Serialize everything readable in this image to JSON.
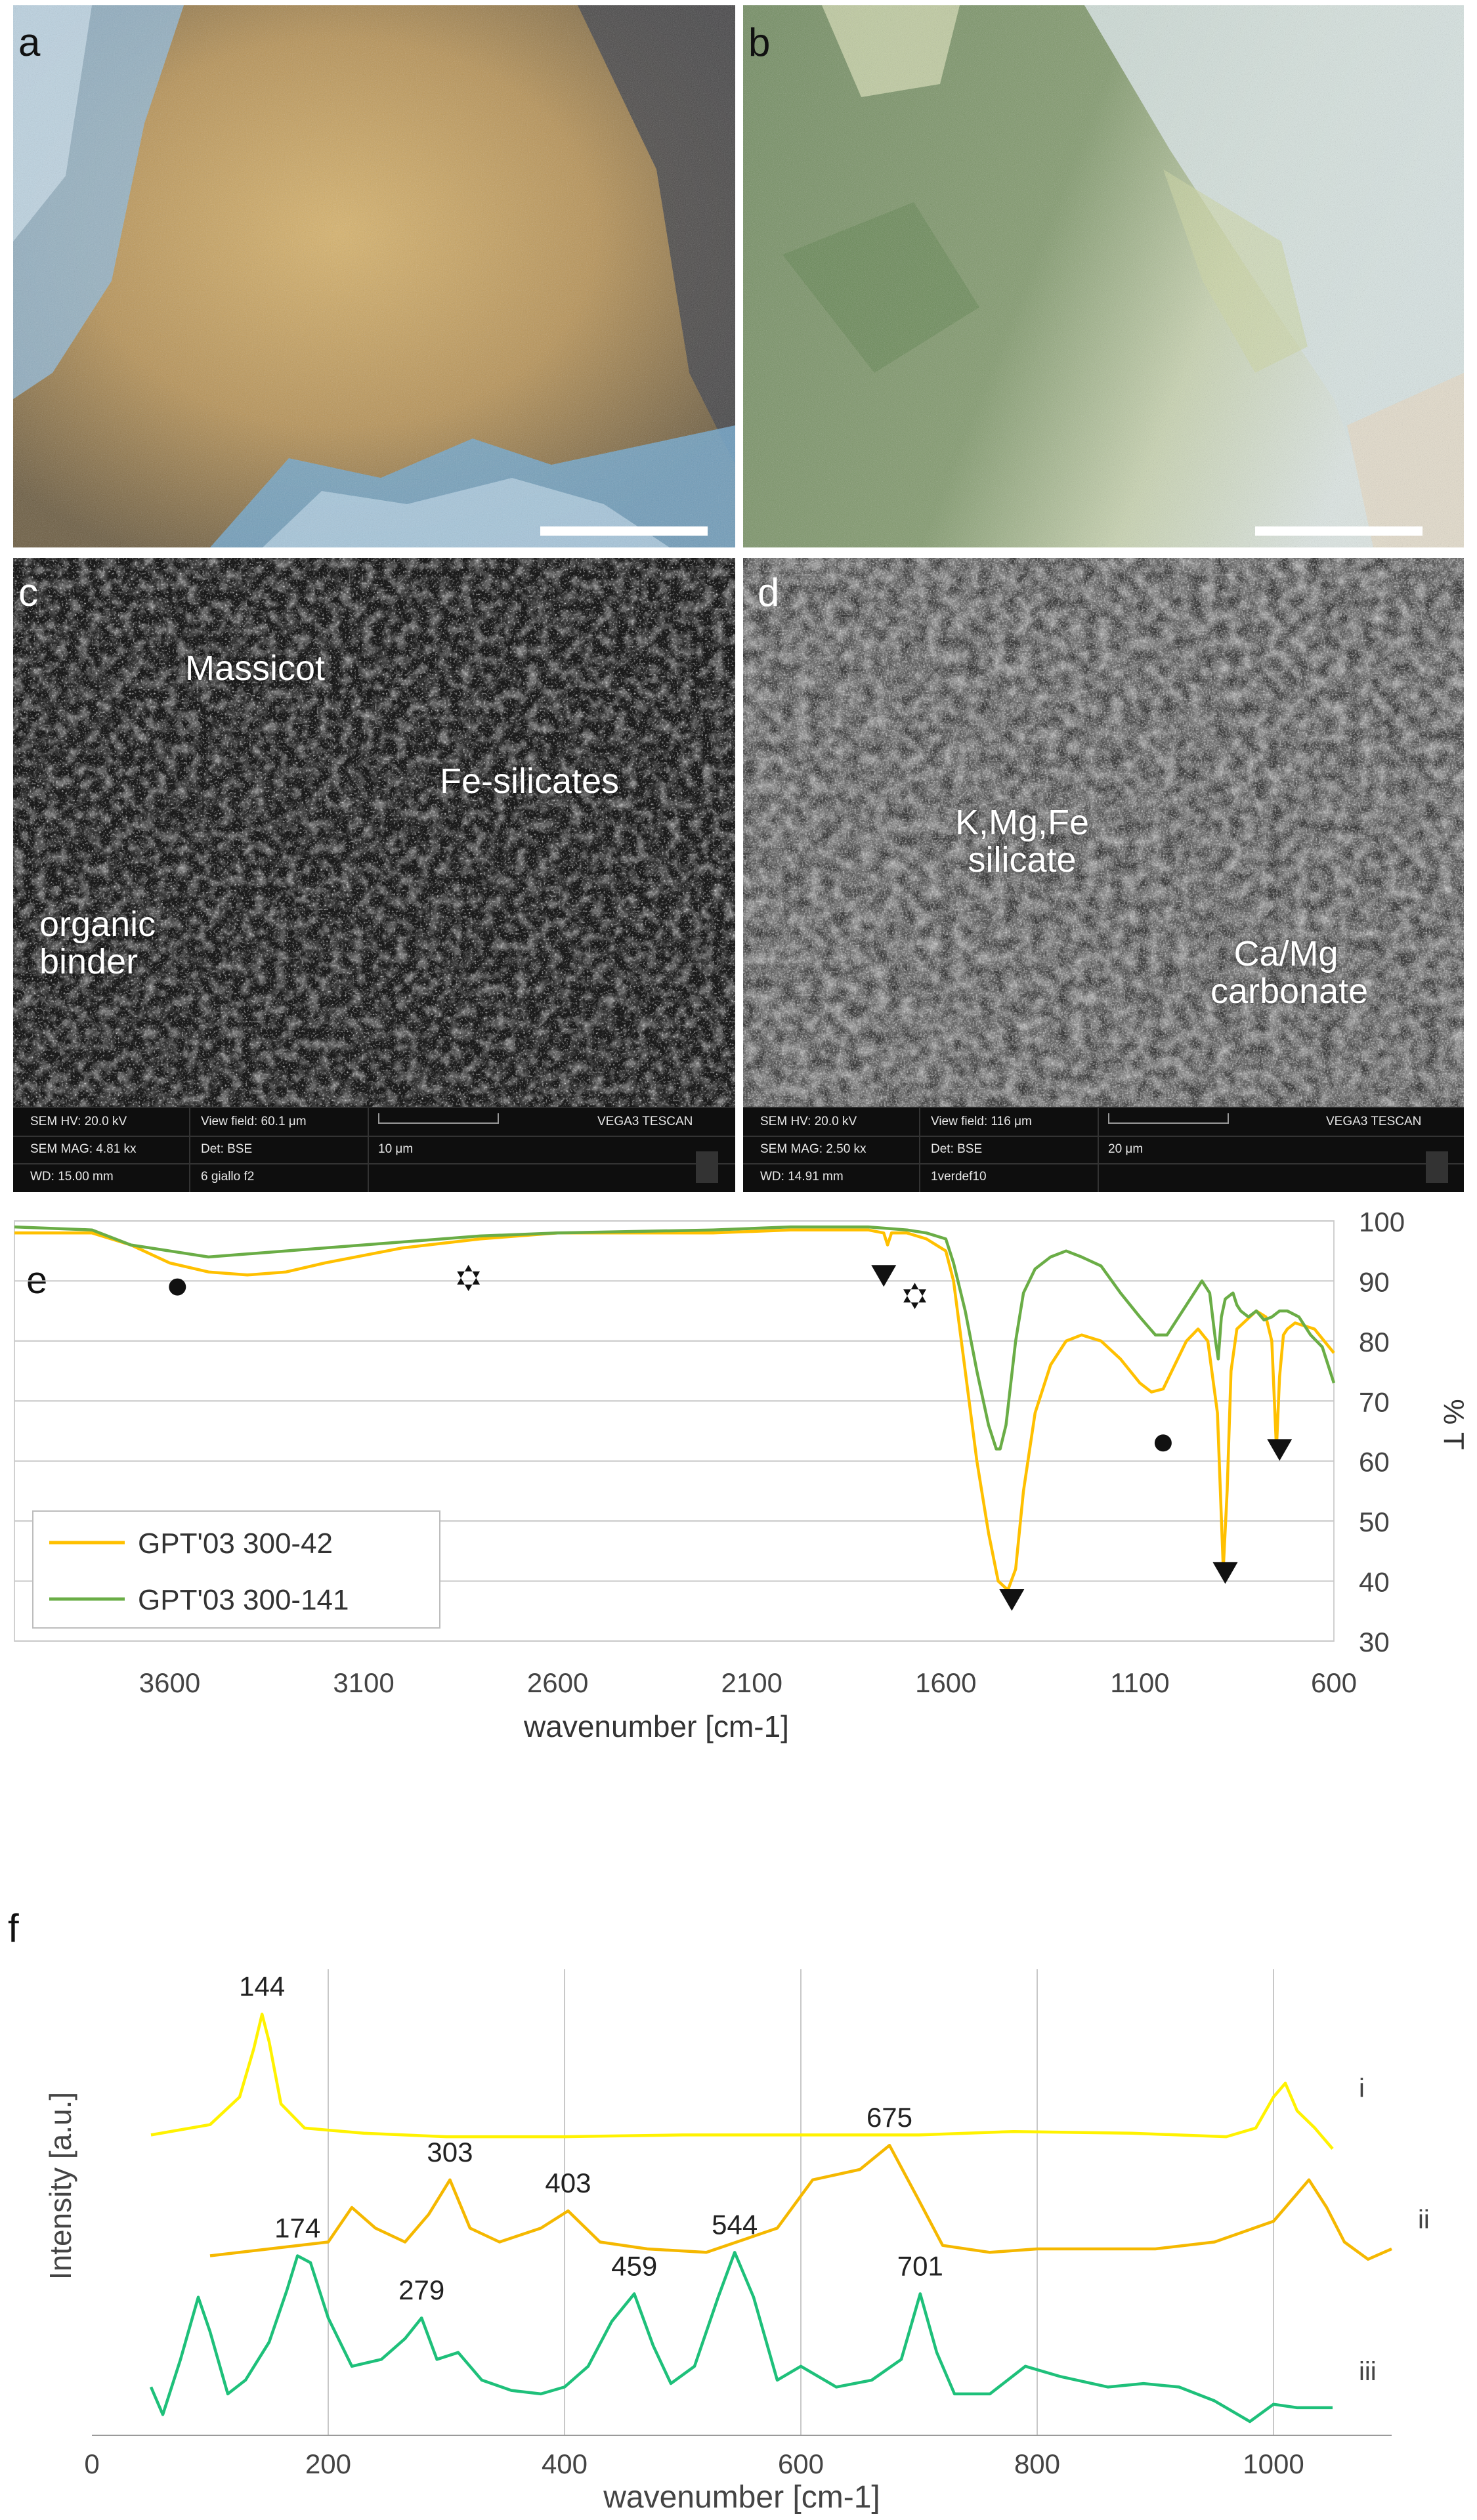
{
  "panels": {
    "a": {
      "label": "a"
    },
    "b": {
      "label": "b"
    },
    "c": {
      "label": "c",
      "annotations": [
        "Massicot",
        "Fe-silicates",
        "organic binder"
      ],
      "footer": {
        "hv": "SEM HV: 20.0 kV",
        "view_field": "View field: 60.1 μm",
        "mag": "SEM MAG: 4.81 kx",
        "det": "Det: BSE",
        "wd": "WD: 15.00 mm",
        "sample": "6 giallo f2",
        "scale": "10 μm",
        "brand": "VEGA3 TESCAN"
      }
    },
    "d": {
      "label": "d",
      "annotations": [
        "K,Mg,Fe silicate",
        "Ca/Mg carbonate"
      ],
      "footer": {
        "hv": "SEM HV: 20.0 kV",
        "view_field": "View field: 116 μm",
        "mag": "SEM MAG: 2.50 kx",
        "det": "Det: BSE",
        "wd": "WD: 14.91 mm",
        "sample": "1verdef10",
        "scale": "20 μm",
        "brand": "VEGA3 TESCAN"
      }
    }
  },
  "chart_data": [
    {
      "panel": "e",
      "type": "line",
      "title": "",
      "xlabel": "wavenumber [cm-1]",
      "ylabel": "% T",
      "xlim": [
        4000,
        600
      ],
      "ylim": [
        30,
        100
      ],
      "x_reversed": true,
      "x_ticks": [
        3600,
        3100,
        2600,
        2100,
        1600,
        1100,
        600
      ],
      "y_ticks": [
        30,
        40,
        50,
        60,
        70,
        80,
        90,
        100
      ],
      "y_axis_side": "right",
      "grid": "horizontal",
      "legend_position": "bottom-left",
      "series": [
        {
          "name": "GPT'03 300-42",
          "color": "#FFC000",
          "points": [
            [
              4000,
              98
            ],
            [
              3800,
              98
            ],
            [
              3700,
              96
            ],
            [
              3600,
              93
            ],
            [
              3500,
              91.5
            ],
            [
              3400,
              91
            ],
            [
              3300,
              91.5
            ],
            [
              3200,
              93
            ],
            [
              3000,
              95.5
            ],
            [
              2800,
              97
            ],
            [
              2600,
              98
            ],
            [
              2400,
              98
            ],
            [
              2200,
              98
            ],
            [
              2000,
              98.5
            ],
            [
              1800,
              98.5
            ],
            [
              1760,
              98
            ],
            [
              1750,
              96
            ],
            [
              1740,
              98
            ],
            [
              1700,
              98
            ],
            [
              1650,
              97
            ],
            [
              1600,
              95
            ],
            [
              1580,
              90
            ],
            [
              1550,
              75
            ],
            [
              1520,
              60
            ],
            [
              1490,
              48
            ],
            [
              1465,
              40
            ],
            [
              1440,
              38.5
            ],
            [
              1420,
              42
            ],
            [
              1400,
              55
            ],
            [
              1370,
              68
            ],
            [
              1330,
              76
            ],
            [
              1290,
              80
            ],
            [
              1250,
              81
            ],
            [
              1200,
              80
            ],
            [
              1150,
              77
            ],
            [
              1100,
              73
            ],
            [
              1070,
              71.5
            ],
            [
              1040,
              72
            ],
            [
              1010,
              76
            ],
            [
              980,
              80
            ],
            [
              950,
              82
            ],
            [
              925,
              80
            ],
            [
              900,
              68
            ],
            [
              885,
              42
            ],
            [
              875,
              55
            ],
            [
              865,
              75
            ],
            [
              850,
              82
            ],
            [
              800,
              85
            ],
            [
              775,
              84
            ],
            [
              760,
              80
            ],
            [
              748,
              62
            ],
            [
              740,
              74
            ],
            [
              730,
              81
            ],
            [
              720,
              82
            ],
            [
              700,
              83
            ],
            [
              650,
              82
            ],
            [
              600,
              78
            ]
          ]
        },
        {
          "name": "GPT'03 300-141",
          "color": "#6AAD46",
          "points": [
            [
              4000,
              99
            ],
            [
              3800,
              98.5
            ],
            [
              3700,
              96
            ],
            [
              3600,
              95
            ],
            [
              3500,
              94
            ],
            [
              3400,
              94.5
            ],
            [
              3200,
              95.5
            ],
            [
              3000,
              96.5
            ],
            [
              2800,
              97.5
            ],
            [
              2600,
              98
            ],
            [
              2200,
              98.5
            ],
            [
              2000,
              99
            ],
            [
              1800,
              99
            ],
            [
              1700,
              98.5
            ],
            [
              1650,
              98
            ],
            [
              1600,
              97
            ],
            [
              1580,
              93
            ],
            [
              1550,
              85
            ],
            [
              1520,
              75
            ],
            [
              1490,
              66
            ],
            [
              1470,
              62
            ],
            [
              1460,
              62
            ],
            [
              1445,
              66
            ],
            [
              1420,
              80
            ],
            [
              1400,
              88
            ],
            [
              1370,
              92
            ],
            [
              1330,
              94
            ],
            [
              1290,
              95
            ],
            [
              1250,
              94
            ],
            [
              1200,
              92.5
            ],
            [
              1150,
              88
            ],
            [
              1100,
              84
            ],
            [
              1060,
              81
            ],
            [
              1030,
              81
            ],
            [
              1000,
              84
            ],
            [
              960,
              88
            ],
            [
              940,
              90
            ],
            [
              920,
              88
            ],
            [
              905,
              80
            ],
            [
              898,
              77
            ],
            [
              890,
              84
            ],
            [
              880,
              87
            ],
            [
              860,
              88
            ],
            [
              850,
              86
            ],
            [
              840,
              85
            ],
            [
              820,
              84
            ],
            [
              800,
              85
            ],
            [
              780,
              83.5
            ],
            [
              760,
              84
            ],
            [
              740,
              85
            ],
            [
              720,
              85
            ],
            [
              690,
              84
            ],
            [
              660,
              81
            ],
            [
              630,
              79
            ],
            [
              600,
              73
            ]
          ]
        }
      ],
      "markers": [
        {
          "symbol": "circle",
          "x": 3580,
          "y": 89
        },
        {
          "symbol": "star",
          "x": 2830,
          "y": 90.5
        },
        {
          "symbol": "triangle-down",
          "x": 1760,
          "y": 91
        },
        {
          "symbol": "star",
          "x": 1680,
          "y": 87.5
        },
        {
          "symbol": "triangle-down",
          "x": 1430,
          "y": 37
        },
        {
          "symbol": "circle",
          "x": 1040,
          "y": 63
        },
        {
          "symbol": "triangle-down",
          "x": 880,
          "y": 41.5
        },
        {
          "symbol": "triangle-down",
          "x": 740,
          "y": 62
        }
      ]
    },
    {
      "panel": "f",
      "type": "line",
      "title": "",
      "xlabel": "wavenumber [cm-1]",
      "ylabel": "Intensity [a.u.]",
      "xlim": [
        0,
        1100
      ],
      "x_ticks": [
        0,
        200,
        400,
        600,
        800,
        1000
      ],
      "grid": "vertical",
      "series": [
        {
          "name": "i",
          "color": "#FFF200",
          "offset": 8.6,
          "points": [
            [
              50,
              0.1
            ],
            [
              100,
              0.4
            ],
            [
              125,
              1.2
            ],
            [
              137,
              2.6
            ],
            [
              144,
              3.6
            ],
            [
              150,
              2.8
            ],
            [
              160,
              1.0
            ],
            [
              180,
              0.3
            ],
            [
              230,
              0.15
            ],
            [
              300,
              0.05
            ],
            [
              400,
              0.05
            ],
            [
              500,
              0.1
            ],
            [
              600,
              0.1
            ],
            [
              700,
              0.1
            ],
            [
              780,
              0.2
            ],
            [
              880,
              0.15
            ],
            [
              960,
              0.05
            ],
            [
              985,
              0.3
            ],
            [
              1000,
              1.2
            ],
            [
              1010,
              1.6
            ],
            [
              1020,
              0.8
            ],
            [
              1035,
              0.3
            ],
            [
              1050,
              -0.3
            ]
          ]
        },
        {
          "name": "ii",
          "color": "#F5B800",
          "offset": 4.8,
          "points": [
            [
              100,
              0.4
            ],
            [
              150,
              0.6
            ],
            [
              200,
              0.8
            ],
            [
              220,
              1.8
            ],
            [
              240,
              1.2
            ],
            [
              265,
              0.8
            ],
            [
              285,
              1.6
            ],
            [
              303,
              2.6
            ],
            [
              320,
              1.2
            ],
            [
              345,
              0.8
            ],
            [
              380,
              1.2
            ],
            [
              403,
              1.7
            ],
            [
              430,
              0.8
            ],
            [
              470,
              0.6
            ],
            [
              520,
              0.5
            ],
            [
              580,
              1.2
            ],
            [
              610,
              2.6
            ],
            [
              650,
              2.9
            ],
            [
              675,
              3.6
            ],
            [
              700,
              2.0
            ],
            [
              720,
              0.7
            ],
            [
              760,
              0.5
            ],
            [
              800,
              0.6
            ],
            [
              850,
              0.6
            ],
            [
              900,
              0.6
            ],
            [
              950,
              0.8
            ],
            [
              1000,
              1.4
            ],
            [
              1030,
              2.6
            ],
            [
              1045,
              1.8
            ],
            [
              1060,
              0.8
            ],
            [
              1080,
              0.3
            ],
            [
              1100,
              0.6
            ]
          ]
        },
        {
          "name": "iii",
          "color": "#1EC07A",
          "offset": 0.4,
          "points": [
            [
              50,
              1.0
            ],
            [
              60,
              0.2
            ],
            [
              75,
              1.8
            ],
            [
              90,
              3.6
            ],
            [
              100,
              2.6
            ],
            [
              115,
              0.8
            ],
            [
              130,
              1.2
            ],
            [
              150,
              2.3
            ],
            [
              165,
              3.8
            ],
            [
              174,
              4.8
            ],
            [
              185,
              4.6
            ],
            [
              200,
              3.0
            ],
            [
              220,
              1.6
            ],
            [
              245,
              1.8
            ],
            [
              265,
              2.4
            ],
            [
              279,
              3.0
            ],
            [
              292,
              1.8
            ],
            [
              310,
              2.0
            ],
            [
              330,
              1.2
            ],
            [
              355,
              0.9
            ],
            [
              380,
              0.8
            ],
            [
              400,
              1.0
            ],
            [
              420,
              1.6
            ],
            [
              440,
              2.9
            ],
            [
              459,
              3.7
            ],
            [
              475,
              2.2
            ],
            [
              490,
              1.1
            ],
            [
              510,
              1.6
            ],
            [
              530,
              3.6
            ],
            [
              544,
              4.9
            ],
            [
              560,
              3.6
            ],
            [
              580,
              1.2
            ],
            [
              600,
              1.6
            ],
            [
              630,
              1.0
            ],
            [
              660,
              1.2
            ],
            [
              685,
              1.8
            ],
            [
              701,
              3.7
            ],
            [
              715,
              2.0
            ],
            [
              730,
              0.8
            ],
            [
              760,
              0.8
            ],
            [
              790,
              1.6
            ],
            [
              820,
              1.3
            ],
            [
              860,
              1.0
            ],
            [
              890,
              1.1
            ],
            [
              920,
              1.0
            ],
            [
              950,
              0.6
            ],
            [
              980,
              0.0
            ],
            [
              1000,
              0.5
            ],
            [
              1020,
              0.4
            ],
            [
              1050,
              0.4
            ]
          ]
        }
      ],
      "peak_labels": [
        {
          "text": "144",
          "x": 144,
          "series": "i"
        },
        {
          "text": "303",
          "x": 303,
          "series": "ii"
        },
        {
          "text": "403",
          "x": 403,
          "series": "ii"
        },
        {
          "text": "675",
          "x": 675,
          "series": "ii"
        },
        {
          "text": "174",
          "x": 174,
          "series": "iii"
        },
        {
          "text": "279",
          "x": 279,
          "series": "iii"
        },
        {
          "text": "459",
          "x": 459,
          "series": "iii"
        },
        {
          "text": "544",
          "x": 544,
          "series": "iii"
        },
        {
          "text": "701",
          "x": 701,
          "series": "iii"
        }
      ],
      "panel_label": "f"
    }
  ],
  "colors": {
    "yellow_series": "#FFC000",
    "green_series": "#6AAD46",
    "raman_i": "#FFF200",
    "raman_ii": "#F5B800",
    "raman_iii": "#1EC07A",
    "grid": "#C8C8C8"
  }
}
